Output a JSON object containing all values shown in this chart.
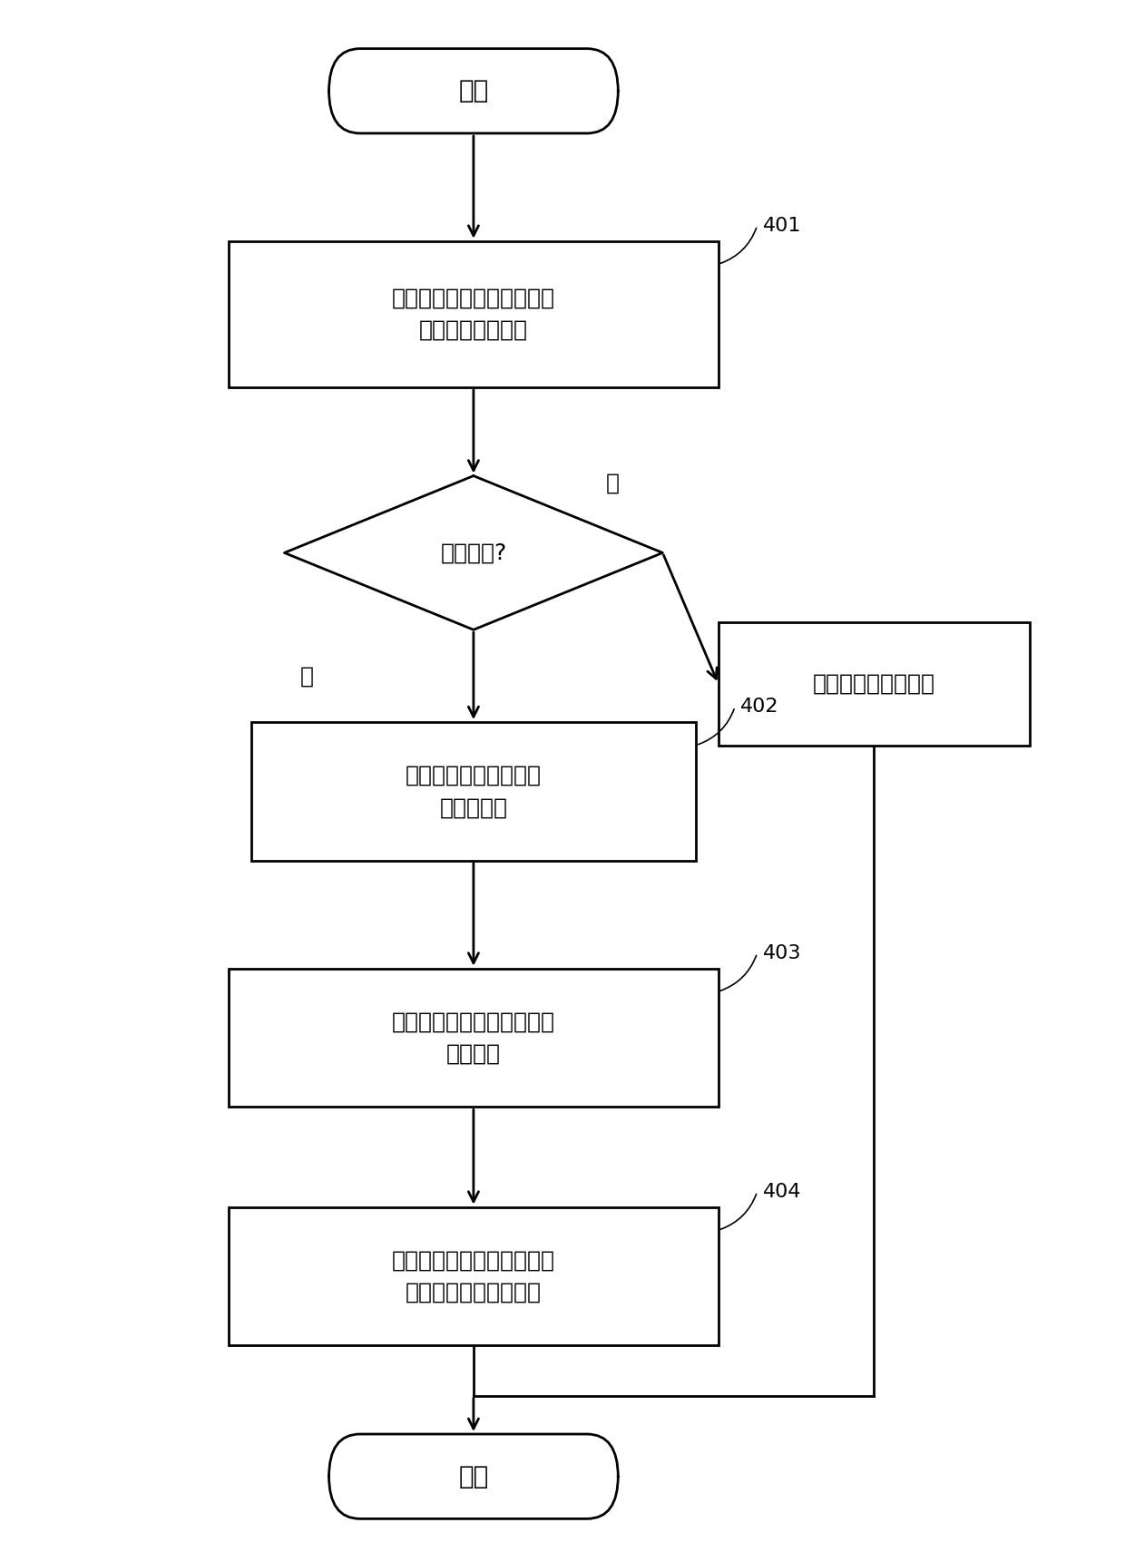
{
  "bg_color": "#ffffff",
  "line_color": "#000000",
  "text_color": "#000000",
  "font_size_main": 18,
  "font_size_label": 16,
  "start_text": "开始",
  "end_text": "结束",
  "box401_text": "获取源节点和目的节点的交\n叉节点的绝对域名",
  "box401_label": "401",
  "diamond_text": "获取成功?",
  "box402_text": "获取源节点到交叉节点\n的路径信息",
  "box402_label": "402",
  "box_right_text": "返回目的不可达信息",
  "box403_text": "获取交叉节点到目的节点的\n路径信息",
  "box403_label": "403",
  "box404_text": "合并得到源节点到目的节点\n的完整路径信息并返回",
  "box404_label": "404",
  "yes_text": "是",
  "no_text": "否"
}
